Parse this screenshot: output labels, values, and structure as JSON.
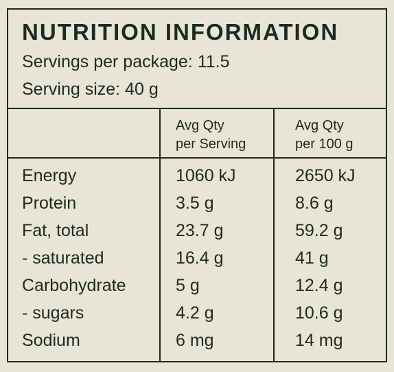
{
  "header": {
    "title": "NUTRITION INFORMATION",
    "servings": "Servings per package: 11.5",
    "serving_size": "Serving size: 40 g"
  },
  "table": {
    "columns": [
      "",
      "Avg Qty\nper Serving",
      "Avg Qty\nper 100 g"
    ],
    "rows": [
      [
        "Energy",
        "1060 kJ",
        "2650 kJ"
      ],
      [
        "Protein",
        "3.5 g",
        "8.6 g"
      ],
      [
        "Fat, total",
        "23.7 g",
        "59.2 g"
      ],
      [
        "- saturated",
        "16.4 g",
        "41 g"
      ],
      [
        "Carbohydrate",
        "5 g",
        "12.4 g"
      ],
      [
        "- sugars",
        "4.2 g",
        "10.6 g"
      ],
      [
        "Sodium",
        "6 mg",
        "14 mg"
      ]
    ]
  }
}
